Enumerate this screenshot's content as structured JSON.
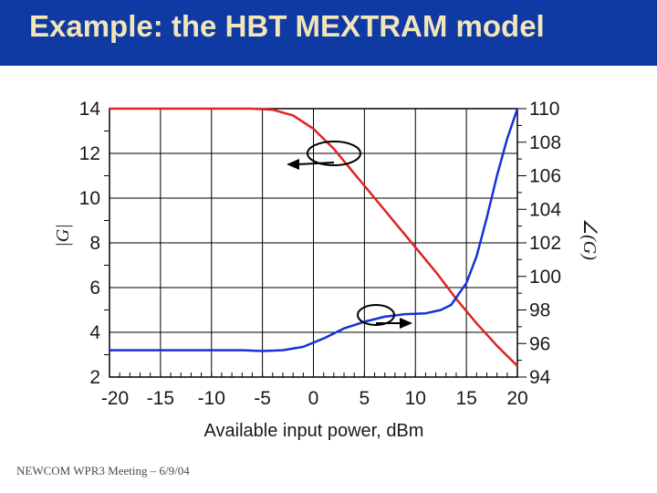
{
  "slide": {
    "title": "Example: the HBT MEXTRAM model",
    "footer": "NEWCOM WPR3 Meeting – 6/9/04",
    "title_bar_color": "#0f3aa3",
    "title_text_color": "#f2e6b8"
  },
  "chart_data": {
    "type": "line",
    "title": "",
    "xlabel": "Available input power, dBm",
    "ylabel_left": "|G|",
    "ylabel_right": "∠(G)",
    "xlim": [
      -20,
      20
    ],
    "ylim_left": [
      2,
      14
    ],
    "ylim_right": [
      94,
      110
    ],
    "x_ticks": [
      "-20",
      "-15",
      "-10",
      "-5",
      "0",
      "5",
      "10",
      "15",
      "20"
    ],
    "y_left_ticks": [
      "2",
      "4",
      "6",
      "8",
      "10",
      "12",
      "14"
    ],
    "y_right_ticks": [
      "94",
      "96",
      "98",
      "100",
      "102",
      "104",
      "106",
      "108",
      "110"
    ],
    "grid": true,
    "series": [
      {
        "axis": "left",
        "color": "#e0231c",
        "x": [
          -20,
          -10,
          -6,
          -4,
          -2,
          0,
          2,
          4,
          6,
          8,
          10,
          12,
          14,
          16,
          18,
          20
        ],
        "y": [
          14,
          14,
          14,
          13.95,
          13.7,
          13.1,
          12.2,
          11.1,
          10.0,
          8.9,
          7.8,
          6.7,
          5.5,
          4.4,
          3.4,
          2.5
        ]
      },
      {
        "axis": "right",
        "color": "#1830d8",
        "x": [
          -20,
          -10,
          -7,
          -5,
          -3,
          -1,
          1,
          3,
          5,
          7,
          9,
          11,
          12.5,
          13.5,
          15,
          16,
          17,
          18,
          19,
          20
        ],
        "y": [
          95.6,
          95.6,
          95.6,
          95.55,
          95.6,
          95.8,
          96.3,
          96.9,
          97.3,
          97.6,
          97.75,
          97.8,
          98.0,
          98.3,
          99.6,
          101.2,
          103.5,
          106.0,
          108.2,
          110.0
        ]
      }
    ],
    "annotations": [
      {
        "target": "left",
        "arrow": "left"
      },
      {
        "target": "right",
        "arrow": "right"
      }
    ]
  }
}
